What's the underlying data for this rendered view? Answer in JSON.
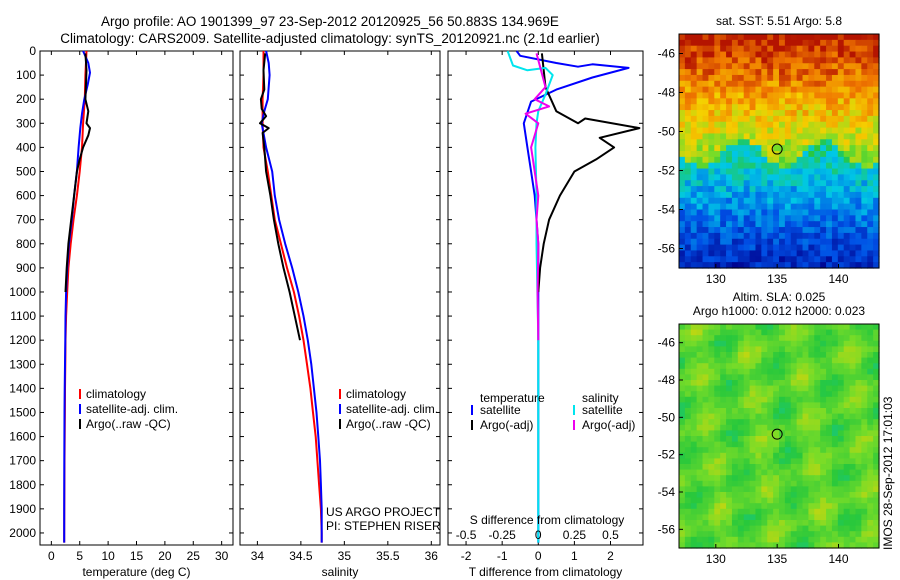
{
  "header": {
    "title_line1": "Argo profile: AO 1901399_97 23-Sep-2012 20120925_56 50.883S 134.969E",
    "title_line2": "Climatology: CARS2009. Satellite-adjusted climatology: synTS_20120921.nc (2.1d earlier)"
  },
  "colors": {
    "climatology": "#ff0000",
    "satellite": "#0000ff",
    "argo": "#000000",
    "satellite_salinity": "#00e5ee",
    "argo_salinity": "#ee00ee"
  },
  "chart_data": [
    {
      "type": "line",
      "id": "temperature",
      "xlabel": "temperature (deg C)",
      "ylabel": "",
      "xlim": [
        -2,
        32
      ],
      "ylim": [
        2050,
        0
      ],
      "xticks": [
        0,
        5,
        10,
        15,
        20,
        25,
        30
      ],
      "yticks": [
        0,
        100,
        200,
        300,
        400,
        500,
        600,
        700,
        800,
        900,
        1000,
        1100,
        1200,
        1300,
        1400,
        1500,
        1600,
        1700,
        1800,
        1900,
        2000
      ],
      "legend": [
        "climatology",
        "satellite-adj. clim.",
        "Argo(..raw -QC)"
      ],
      "legend_position": "lower-center",
      "series": [
        {
          "name": "climatology",
          "color": "#ff0000",
          "x": [
            6.2,
            6.0,
            5.9,
            5.6,
            5.4,
            5.0,
            4.5,
            3.9,
            3.4,
            3.0,
            2.8,
            2.6,
            2.5,
            2.45,
            2.4,
            2.38,
            2.35,
            2.32,
            2.3,
            2.28,
            2.27,
            2.26
          ],
          "y": [
            0,
            100,
            200,
            300,
            400,
            500,
            600,
            700,
            800,
            900,
            1000,
            1100,
            1200,
            1300,
            1400,
            1500,
            1600,
            1700,
            1800,
            1900,
            2000,
            2040
          ]
        },
        {
          "name": "satellite-adj. clim.",
          "color": "#0000ff",
          "x": [
            5.6,
            6.5,
            6.8,
            6.4,
            5.8,
            5.4,
            5.1,
            4.8,
            4.5,
            4.0,
            3.6,
            3.1,
            2.8,
            2.6,
            2.5,
            2.45,
            2.4,
            2.35,
            2.32,
            2.3,
            2.28,
            2.27,
            2.27
          ],
          "y": [
            0,
            50,
            90,
            140,
            200,
            260,
            320,
            400,
            500,
            600,
            700,
            800,
            900,
            1000,
            1100,
            1200,
            1300,
            1400,
            1500,
            1600,
            1700,
            1900,
            2040
          ]
        },
        {
          "name": "Argo(..raw -QC)",
          "color": "#000000",
          "x": [
            6.0,
            6.2,
            6.0,
            6.5,
            6.2,
            6.8,
            6.5,
            5.6,
            5.0,
            4.5,
            4.0,
            3.5,
            3.0,
            2.7,
            2.5
          ],
          "y": [
            10,
            80,
            200,
            250,
            300,
            320,
            350,
            400,
            450,
            500,
            600,
            700,
            800,
            900,
            1000
          ]
        }
      ]
    },
    {
      "type": "line",
      "id": "salinity",
      "xlabel": "salinity",
      "ylabel": "",
      "xlim": [
        33.8,
        36.1
      ],
      "ylim": [
        2050,
        0
      ],
      "xticks": [
        34,
        34.5,
        35,
        35.5,
        36
      ],
      "legend": [
        "climatology",
        "satellite-adj. clim.",
        "Argo(..raw -QC)"
      ],
      "legend_position": "lower-center",
      "annotations": [
        "US ARGO PROJECT",
        "PI: STEPHEN RISER"
      ],
      "series": [
        {
          "name": "climatology",
          "color": "#ff0000",
          "x": [
            34.07,
            34.07,
            34.06,
            34.06,
            34.07,
            34.12,
            34.16,
            34.2,
            34.27,
            34.34,
            34.42,
            34.48,
            34.53,
            34.57,
            34.61,
            34.64,
            34.67,
            34.69,
            34.71,
            34.73,
            34.74,
            34.74
          ],
          "y": [
            0,
            100,
            200,
            300,
            400,
            500,
            600,
            700,
            800,
            900,
            1000,
            1100,
            1200,
            1300,
            1400,
            1500,
            1600,
            1700,
            1800,
            1900,
            2000,
            2040
          ]
        },
        {
          "name": "satellite-adj. clim.",
          "color": "#0000ff",
          "x": [
            34.1,
            34.13,
            34.14,
            34.12,
            34.08,
            34.05,
            34.1,
            34.17,
            34.2,
            34.25,
            34.32,
            34.4,
            34.47,
            34.53,
            34.58,
            34.62,
            34.65,
            34.68,
            34.7,
            34.72,
            34.73,
            34.74,
            34.74
          ],
          "y": [
            0,
            50,
            100,
            200,
            250,
            300,
            400,
            500,
            600,
            700,
            800,
            900,
            1000,
            1100,
            1200,
            1300,
            1400,
            1500,
            1600,
            1700,
            1800,
            1900,
            2040
          ]
        },
        {
          "name": "Argo(..raw -QC)",
          "color": "#000000",
          "x": [
            34.09,
            34.07,
            34.08,
            34.04,
            34.05,
            34.1,
            34.03,
            34.13,
            34.06,
            34.08,
            34.1,
            34.15,
            34.19,
            34.24,
            34.3,
            34.37,
            34.43,
            34.49
          ],
          "y": [
            10,
            80,
            160,
            200,
            240,
            270,
            300,
            320,
            340,
            400,
            500,
            600,
            700,
            800,
            900,
            1000,
            1100,
            1200
          ]
        }
      ]
    },
    {
      "type": "line",
      "id": "difference",
      "xlabel": "T difference from climatology",
      "x2label": "S difference from climatology",
      "ylabel": "",
      "xlim": [
        -2.5,
        2.9
      ],
      "ylim": [
        2050,
        0
      ],
      "xticks": [
        -2,
        -1,
        0,
        1,
        2
      ],
      "x2ticks": [
        "-0.5",
        "-0.25",
        "0",
        "0.25",
        "0.5"
      ],
      "legend_left_title": "temperature",
      "legend_right_title": "salinity",
      "legend": [
        "satellite",
        "Argo(-adj)",
        "satellite",
        "Argo(-adj)"
      ],
      "legend_position": "lower-center",
      "series": [
        {
          "name": "satellite",
          "group": "temperature",
          "color": "#0000ff",
          "x": [
            -0.6,
            -0.5,
            0.5,
            1.1,
            1.5,
            2.5,
            1.5,
            0.5,
            -0.2,
            -0.4,
            -0.3,
            -0.2,
            -0.1,
            0.0,
            0.0,
            0.0,
            0.0
          ],
          "y": [
            0,
            20,
            50,
            65,
            55,
            70,
            110,
            160,
            210,
            300,
            400,
            500,
            600,
            800,
            1000,
            1500,
            2040
          ]
        },
        {
          "name": "Argo(-adj)",
          "group": "temperature",
          "color": "#000000",
          "x": [
            0.1,
            0.2,
            0.5,
            1.1,
            1.3,
            2.8,
            1.7,
            2.1,
            1.6,
            1.0,
            0.6,
            0.3,
            0.15,
            0.05,
            0.0
          ],
          "y": [
            10,
            150,
            250,
            300,
            280,
            320,
            360,
            400,
            450,
            500,
            600,
            700,
            800,
            900,
            1000
          ]
        },
        {
          "name": "satellite",
          "group": "salinity",
          "color": "#00e5ee",
          "x": [
            -0.85,
            -0.7,
            -0.3,
            0.2,
            0.4,
            0.2,
            0.0,
            -0.05,
            -0.08,
            -0.05,
            -0.05,
            0.0,
            0.0
          ],
          "y": [
            0,
            60,
            80,
            70,
            100,
            180,
            250,
            300,
            400,
            600,
            800,
            1200,
            2040
          ]
        },
        {
          "name": "Argo(-adj)",
          "group": "salinity",
          "color": "#ee00ee",
          "x": [
            -0.05,
            0.2,
            -0.1,
            0.3,
            -0.35,
            0.0,
            -0.2,
            -0.1,
            0.0,
            -0.05,
            0.0,
            -0.02,
            0.0
          ],
          "y": [
            10,
            150,
            200,
            230,
            260,
            300,
            400,
            500,
            600,
            700,
            800,
            1000,
            1200
          ]
        }
      ]
    },
    {
      "type": "heatmap",
      "id": "sst_map",
      "title": "sat. SST: 5.51 Argo: 5.8",
      "xlim": [
        127,
        143.3
      ],
      "ylim": [
        -57,
        -45
      ],
      "xticks": [
        130,
        135,
        140
      ],
      "yticks": [
        -46,
        -48,
        -50,
        -52,
        -54,
        -56
      ],
      "marker": {
        "lon": 135,
        "lat": -50.9
      }
    },
    {
      "type": "heatmap",
      "id": "sla_map",
      "title": "Altim. SLA: 0.025",
      "subtitle": "Argo h1000: 0.012 h2000: 0.023",
      "xlim": [
        127,
        143.3
      ],
      "ylim": [
        -57,
        -45
      ],
      "xticks": [
        130,
        135,
        140
      ],
      "yticks": [
        -46,
        -48,
        -50,
        -52,
        -54,
        -56
      ],
      "marker": {
        "lon": 135,
        "lat": -50.9
      }
    }
  ],
  "footer": {
    "side_label": "IMOS 28-Sep-2012 17:01:03"
  }
}
